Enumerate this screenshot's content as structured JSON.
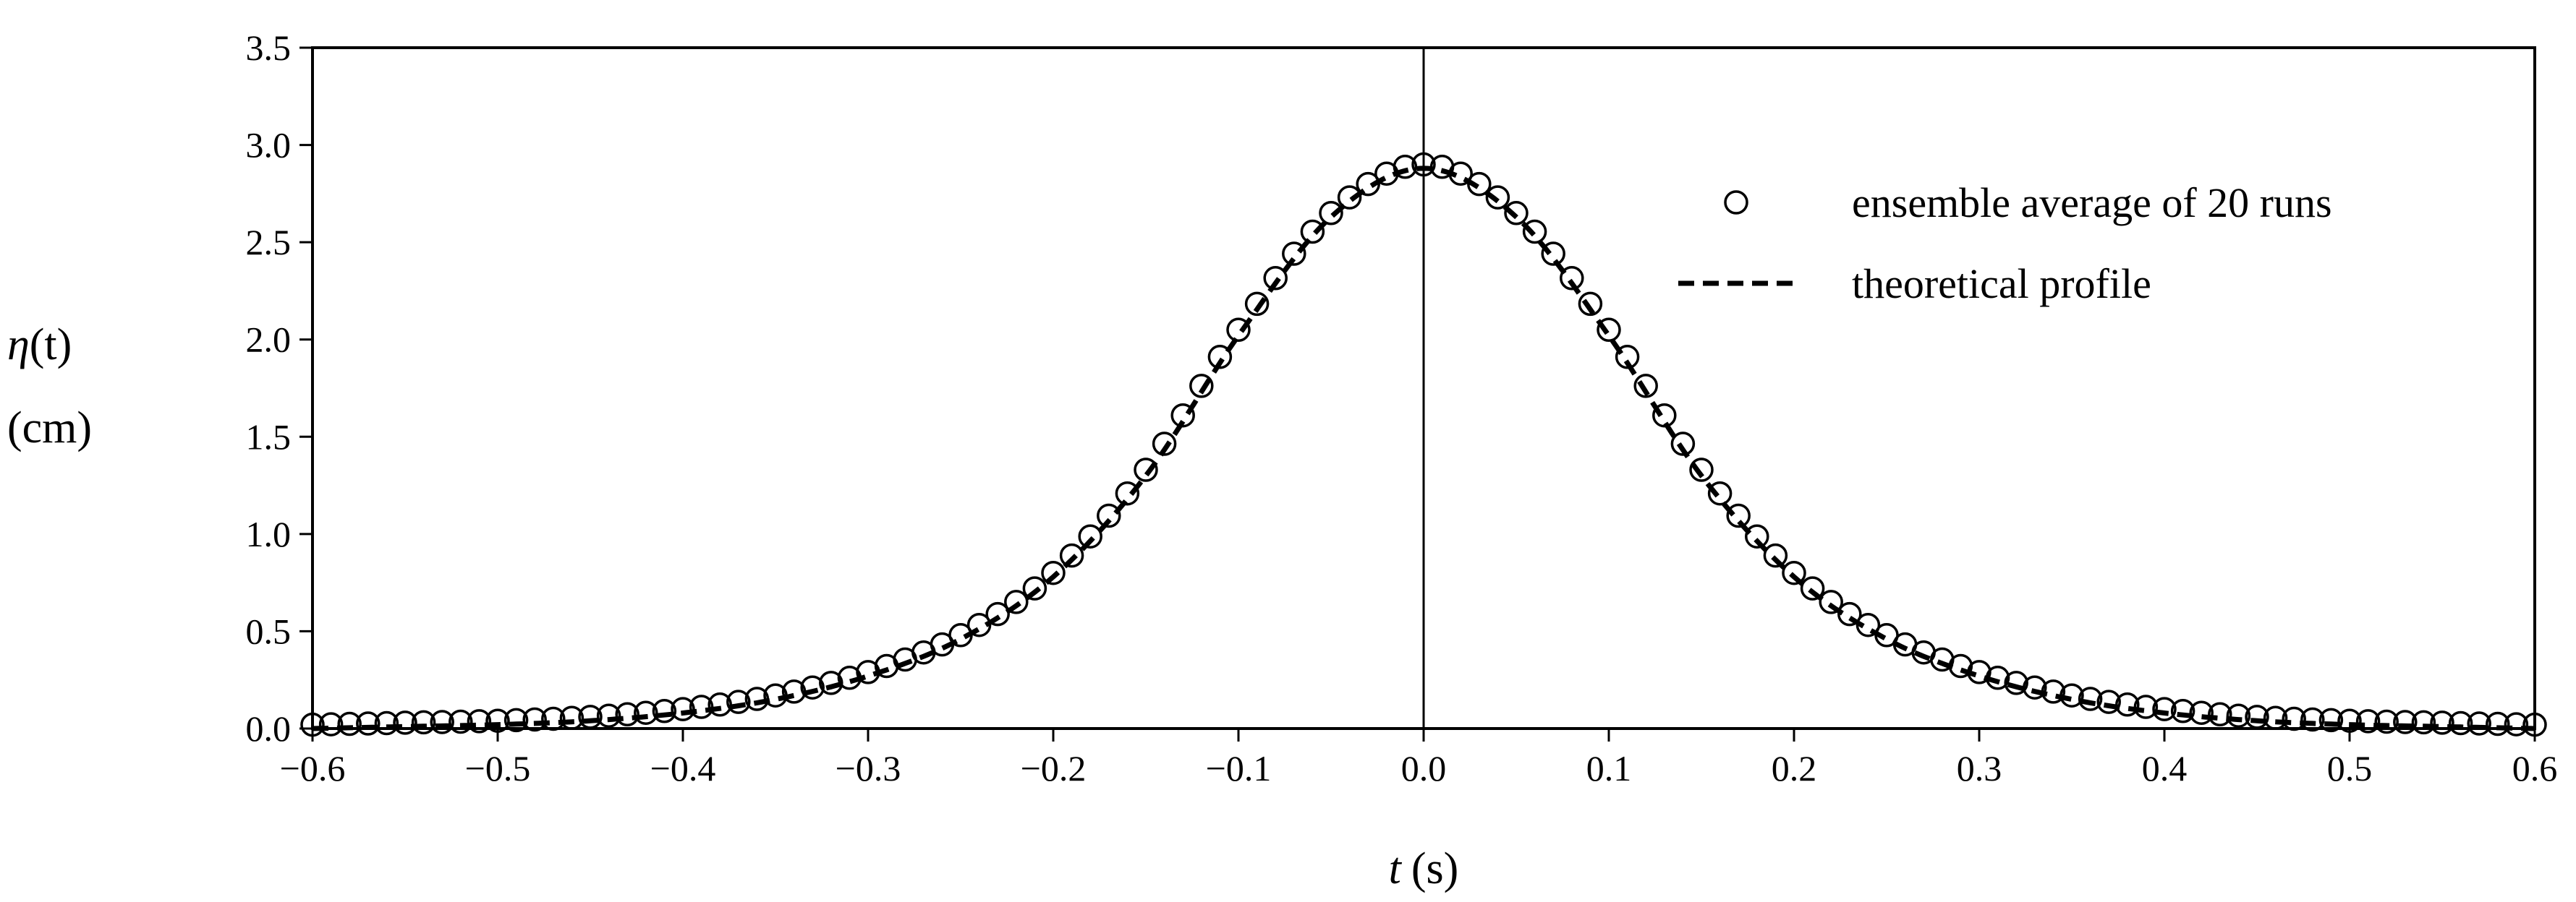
{
  "chart_data": {
    "type": "scatter",
    "title": "",
    "xlabel": {
      "symbol": "t",
      "unit": "(s)"
    },
    "ylabel": {
      "symbol": "η",
      "arg": "(t)",
      "unit": "(cm)"
    },
    "xlim": [
      -0.6,
      0.6
    ],
    "ylim": [
      0,
      3.5
    ],
    "x_ticks": [
      -0.6,
      -0.5,
      -0.4,
      -0.3,
      -0.2,
      -0.1,
      0.0,
      0.1,
      0.2,
      0.3,
      0.4,
      0.5,
      0.6
    ],
    "x_tick_labels": [
      "−0.6",
      "−0.5",
      "−0.4",
      "−0.3",
      "−0.2",
      "−0.1",
      "0.0",
      "0.1",
      "0.2",
      "0.3",
      "0.4",
      "0.5",
      "0.6"
    ],
    "y_ticks": [
      0.0,
      0.5,
      1.0,
      1.5,
      2.0,
      2.5,
      3.0,
      3.5
    ],
    "y_tick_labels": [
      "0.0",
      "0.5",
      "1.0",
      "1.5",
      "2.0",
      "2.5",
      "3.0",
      "3.5"
    ],
    "grid": false,
    "legend_position": "top-right",
    "zero_line_x": 0.0,
    "series": [
      {
        "name": "ensemble average of 20 runs",
        "style": "open-circle",
        "x": [
          -0.6,
          -0.55,
          -0.5,
          -0.45,
          -0.4,
          -0.35,
          -0.3,
          -0.25,
          -0.2,
          -0.15,
          -0.1,
          -0.05,
          0.0,
          0.05,
          0.1,
          0.15,
          0.2,
          0.25,
          0.3,
          0.35,
          0.4,
          0.45,
          0.5,
          0.55,
          0.6
        ],
        "y": [
          0.02,
          0.03,
          0.04,
          0.06,
          0.1,
          0.17,
          0.29,
          0.48,
          0.8,
          1.33,
          2.05,
          2.65,
          2.9,
          2.65,
          2.05,
          1.33,
          0.8,
          0.48,
          0.29,
          0.17,
          0.1,
          0.06,
          0.04,
          0.03,
          0.02
        ]
      },
      {
        "name": "theoretical profile",
        "style": "dashed-line",
        "x": [
          -0.6,
          -0.55,
          -0.5,
          -0.45,
          -0.4,
          -0.35,
          -0.3,
          -0.25,
          -0.2,
          -0.15,
          -0.1,
          -0.05,
          0.0,
          0.05,
          0.1,
          0.15,
          0.2,
          0.25,
          0.3,
          0.35,
          0.4,
          0.45,
          0.5,
          0.55,
          0.6
        ],
        "y": [
          0.0,
          0.01,
          0.02,
          0.04,
          0.08,
          0.15,
          0.27,
          0.46,
          0.78,
          1.3,
          2.02,
          2.63,
          2.88,
          2.63,
          2.02,
          1.3,
          0.78,
          0.46,
          0.27,
          0.15,
          0.08,
          0.04,
          0.02,
          0.01,
          0.0
        ]
      }
    ]
  }
}
